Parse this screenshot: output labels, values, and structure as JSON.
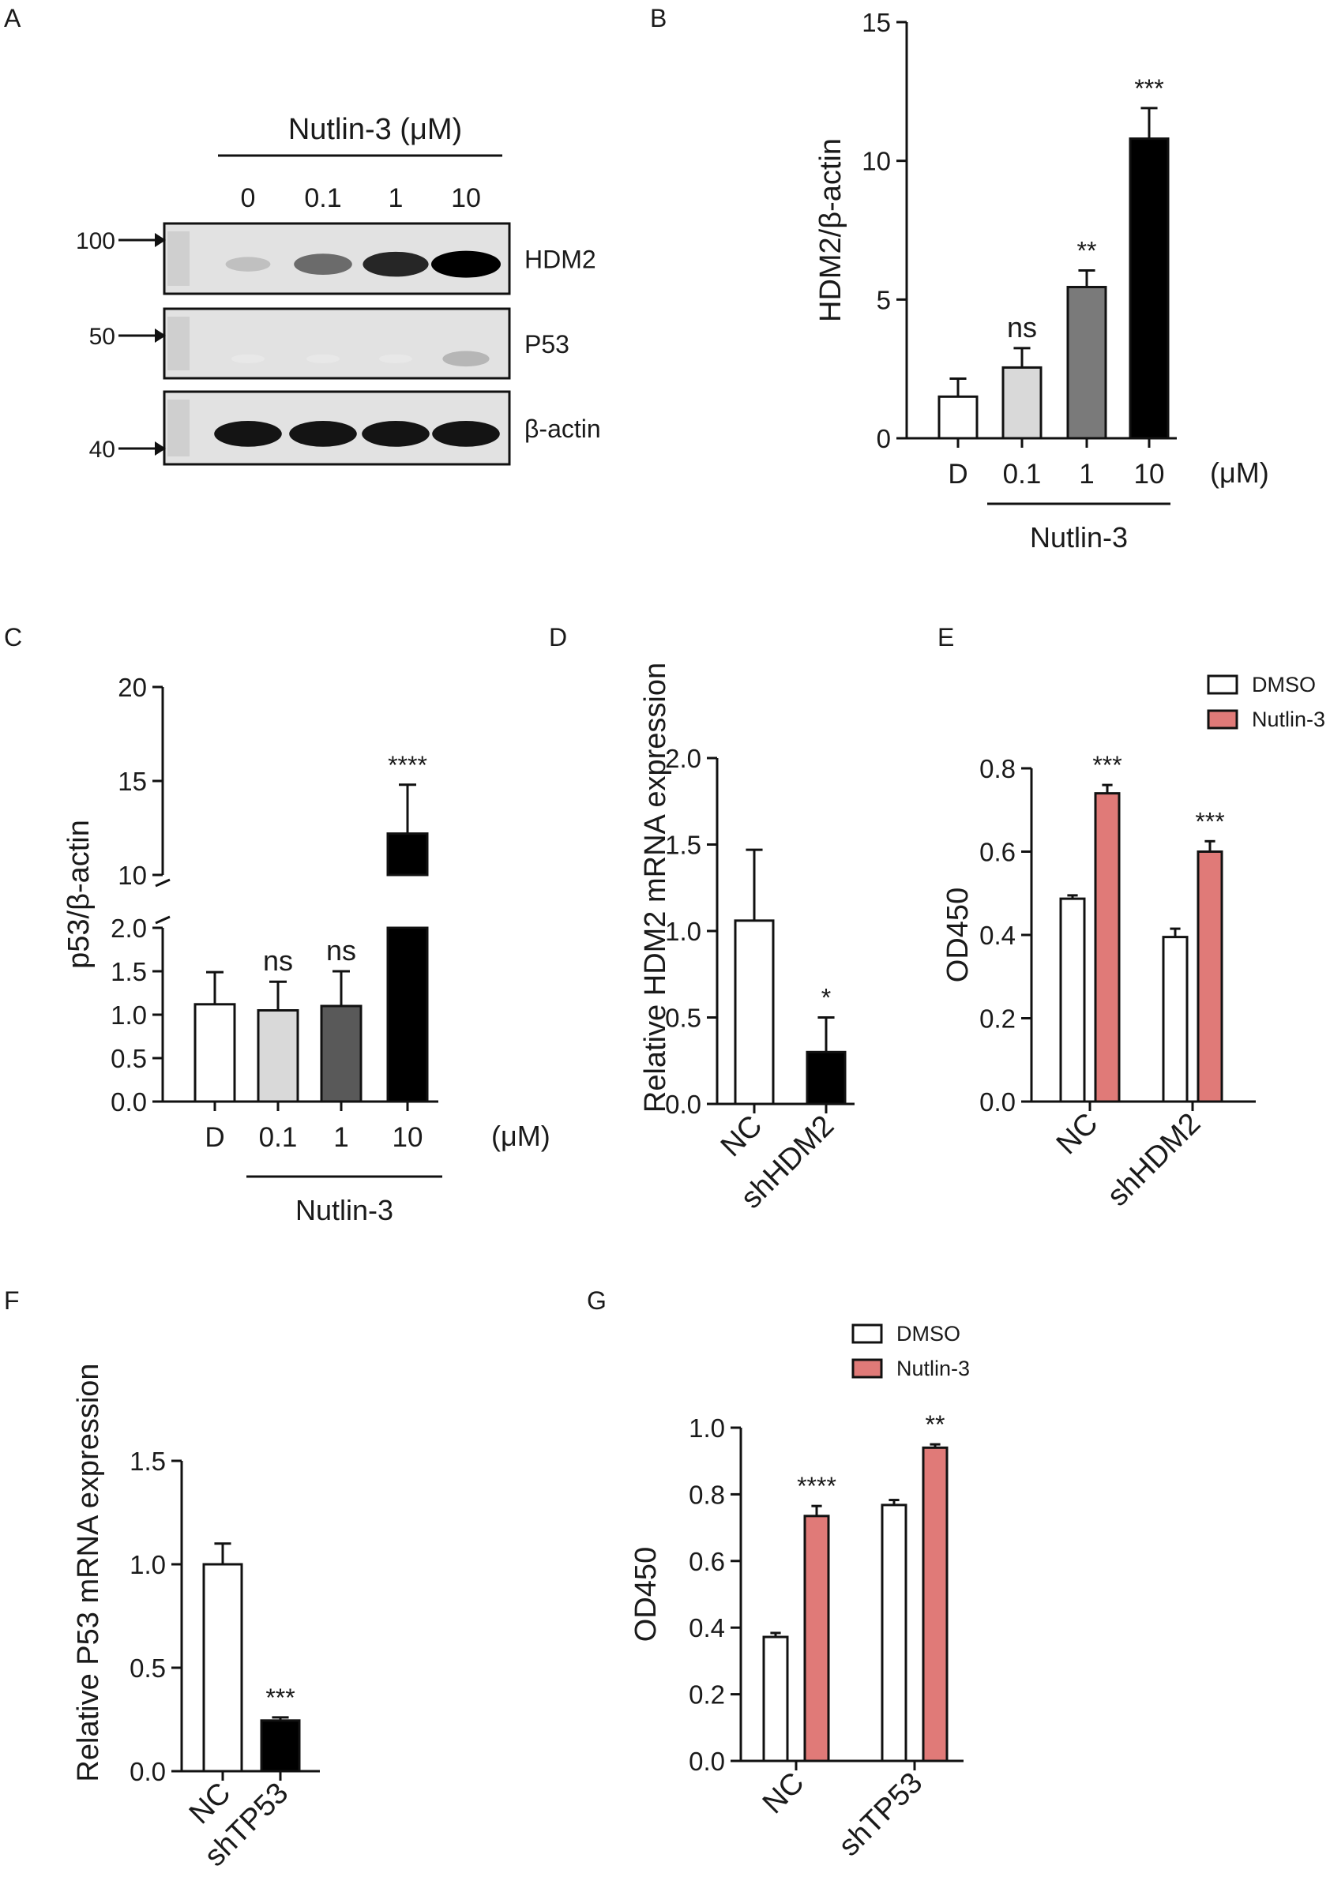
{
  "panel_letters": [
    "A",
    "B",
    "C",
    "D",
    "E",
    "F",
    "G"
  ],
  "colors": {
    "dmso": "#ffffff",
    "nutlin": "#e07a78",
    "black": "#000000",
    "light_gray": "#d9d9d9",
    "dark_gray": "#7a7a7a",
    "blot_bg": "#e2e2e2"
  },
  "blot": {
    "treatment": "Nutlin-3 (μM)",
    "lanes": [
      "0",
      "0.1",
      "1",
      "10"
    ],
    "markers": [
      "100",
      "50",
      "40"
    ],
    "bands": [
      "HDM2",
      "P53",
      "β-actin"
    ],
    "intensity": {
      "HDM2": [
        0.35,
        0.7,
        0.9,
        1.0
      ],
      "P53": [
        0.05,
        0.05,
        0.05,
        0.4
      ],
      "β-actin": [
        0.95,
        0.95,
        0.95,
        0.95
      ]
    }
  },
  "chart_data": [
    {
      "panel": "B",
      "type": "bar",
      "categories": [
        "D",
        "0.1",
        "1",
        "10"
      ],
      "values": [
        1.5,
        2.55,
        5.45,
        10.8
      ],
      "errors": [
        0.65,
        0.7,
        0.6,
        1.1
      ],
      "significance": [
        "",
        "ns",
        "**",
        "***"
      ],
      "ylabel": "HDM2/β-actin",
      "xgroup_label": "Nutlin-3",
      "unit": "(μM)",
      "ylim": [
        0,
        15
      ],
      "yticks": [
        "0",
        "5",
        "10",
        "15"
      ],
      "bar_colors": [
        "#ffffff",
        "#d9d9d9",
        "#7a7a7a",
        "#000000"
      ]
    },
    {
      "panel": "C",
      "type": "bar",
      "categories": [
        "D",
        "0.1",
        "1",
        "10"
      ],
      "values": [
        1.12,
        1.05,
        1.1,
        12.2
      ],
      "errors": [
        0.37,
        0.33,
        0.4,
        2.6
      ],
      "significance": [
        "",
        "ns",
        "ns",
        "****"
      ],
      "ylabel": "p53/β-actin",
      "xgroup_label": "Nutlin-3",
      "unit": "(μM)",
      "axis_break": {
        "lower": [
          0,
          2
        ],
        "upper": [
          10,
          20
        ]
      },
      "yticks": [
        "0.0",
        "0.5",
        "1.0",
        "1.5",
        "2.0",
        "10",
        "15",
        "20"
      ],
      "bar_colors": [
        "#ffffff",
        "#d9d9d9",
        "#595959",
        "#000000"
      ]
    },
    {
      "panel": "D",
      "type": "bar",
      "categories": [
        "NC",
        "shHDM2"
      ],
      "values": [
        1.06,
        0.3
      ],
      "errors": [
        0.41,
        0.2
      ],
      "significance": [
        "",
        "*"
      ],
      "ylabel": "Relative HDM2 mRNA expression",
      "ylim": [
        0,
        2.0
      ],
      "yticks": [
        "0.0",
        "0.5",
        "1.0",
        "1.5",
        "2.0"
      ],
      "bar_colors": [
        "#ffffff",
        "#000000"
      ]
    },
    {
      "panel": "E",
      "type": "bar",
      "categories": [
        "NC",
        "shHDM2"
      ],
      "series": [
        {
          "name": "DMSO",
          "values": [
            0.487,
            0.395
          ],
          "errors": [
            0.008,
            0.02
          ],
          "color": "#ffffff"
        },
        {
          "name": "Nutlin-3",
          "values": [
            0.74,
            0.6
          ],
          "errors": [
            0.02,
            0.025
          ],
          "color": "#e07a78"
        }
      ],
      "significance": [
        "***",
        "***"
      ],
      "ylabel": "OD450",
      "ylim": [
        0,
        0.8
      ],
      "yticks": [
        "0.0",
        "0.2",
        "0.4",
        "0.6",
        "0.8"
      ],
      "legend": "top-right"
    },
    {
      "panel": "F",
      "type": "bar",
      "categories": [
        "NC",
        "shTP53"
      ],
      "values": [
        1.0,
        0.245
      ],
      "errors": [
        0.1,
        0.015
      ],
      "significance": [
        "",
        "***"
      ],
      "ylabel": "Relative P53 mRNA expression",
      "ylim": [
        0,
        1.5
      ],
      "yticks": [
        "0.0",
        "0.5",
        "1.0",
        "1.5"
      ],
      "bar_colors": [
        "#ffffff",
        "#000000"
      ]
    },
    {
      "panel": "G",
      "type": "bar",
      "categories": [
        "NC",
        "shTP53"
      ],
      "series": [
        {
          "name": "DMSO",
          "values": [
            0.372,
            0.768
          ],
          "errors": [
            0.012,
            0.015
          ],
          "color": "#ffffff"
        },
        {
          "name": "Nutlin-3",
          "values": [
            0.735,
            0.94
          ],
          "errors": [
            0.03,
            0.01
          ],
          "color": "#e07a78"
        }
      ],
      "significance": [
        "****",
        "**"
      ],
      "ylabel": "OD450",
      "ylim": [
        0,
        1.0
      ],
      "yticks": [
        "0.0",
        "0.2",
        "0.4",
        "0.6",
        "0.8",
        "1.0"
      ],
      "legend": "top"
    }
  ]
}
